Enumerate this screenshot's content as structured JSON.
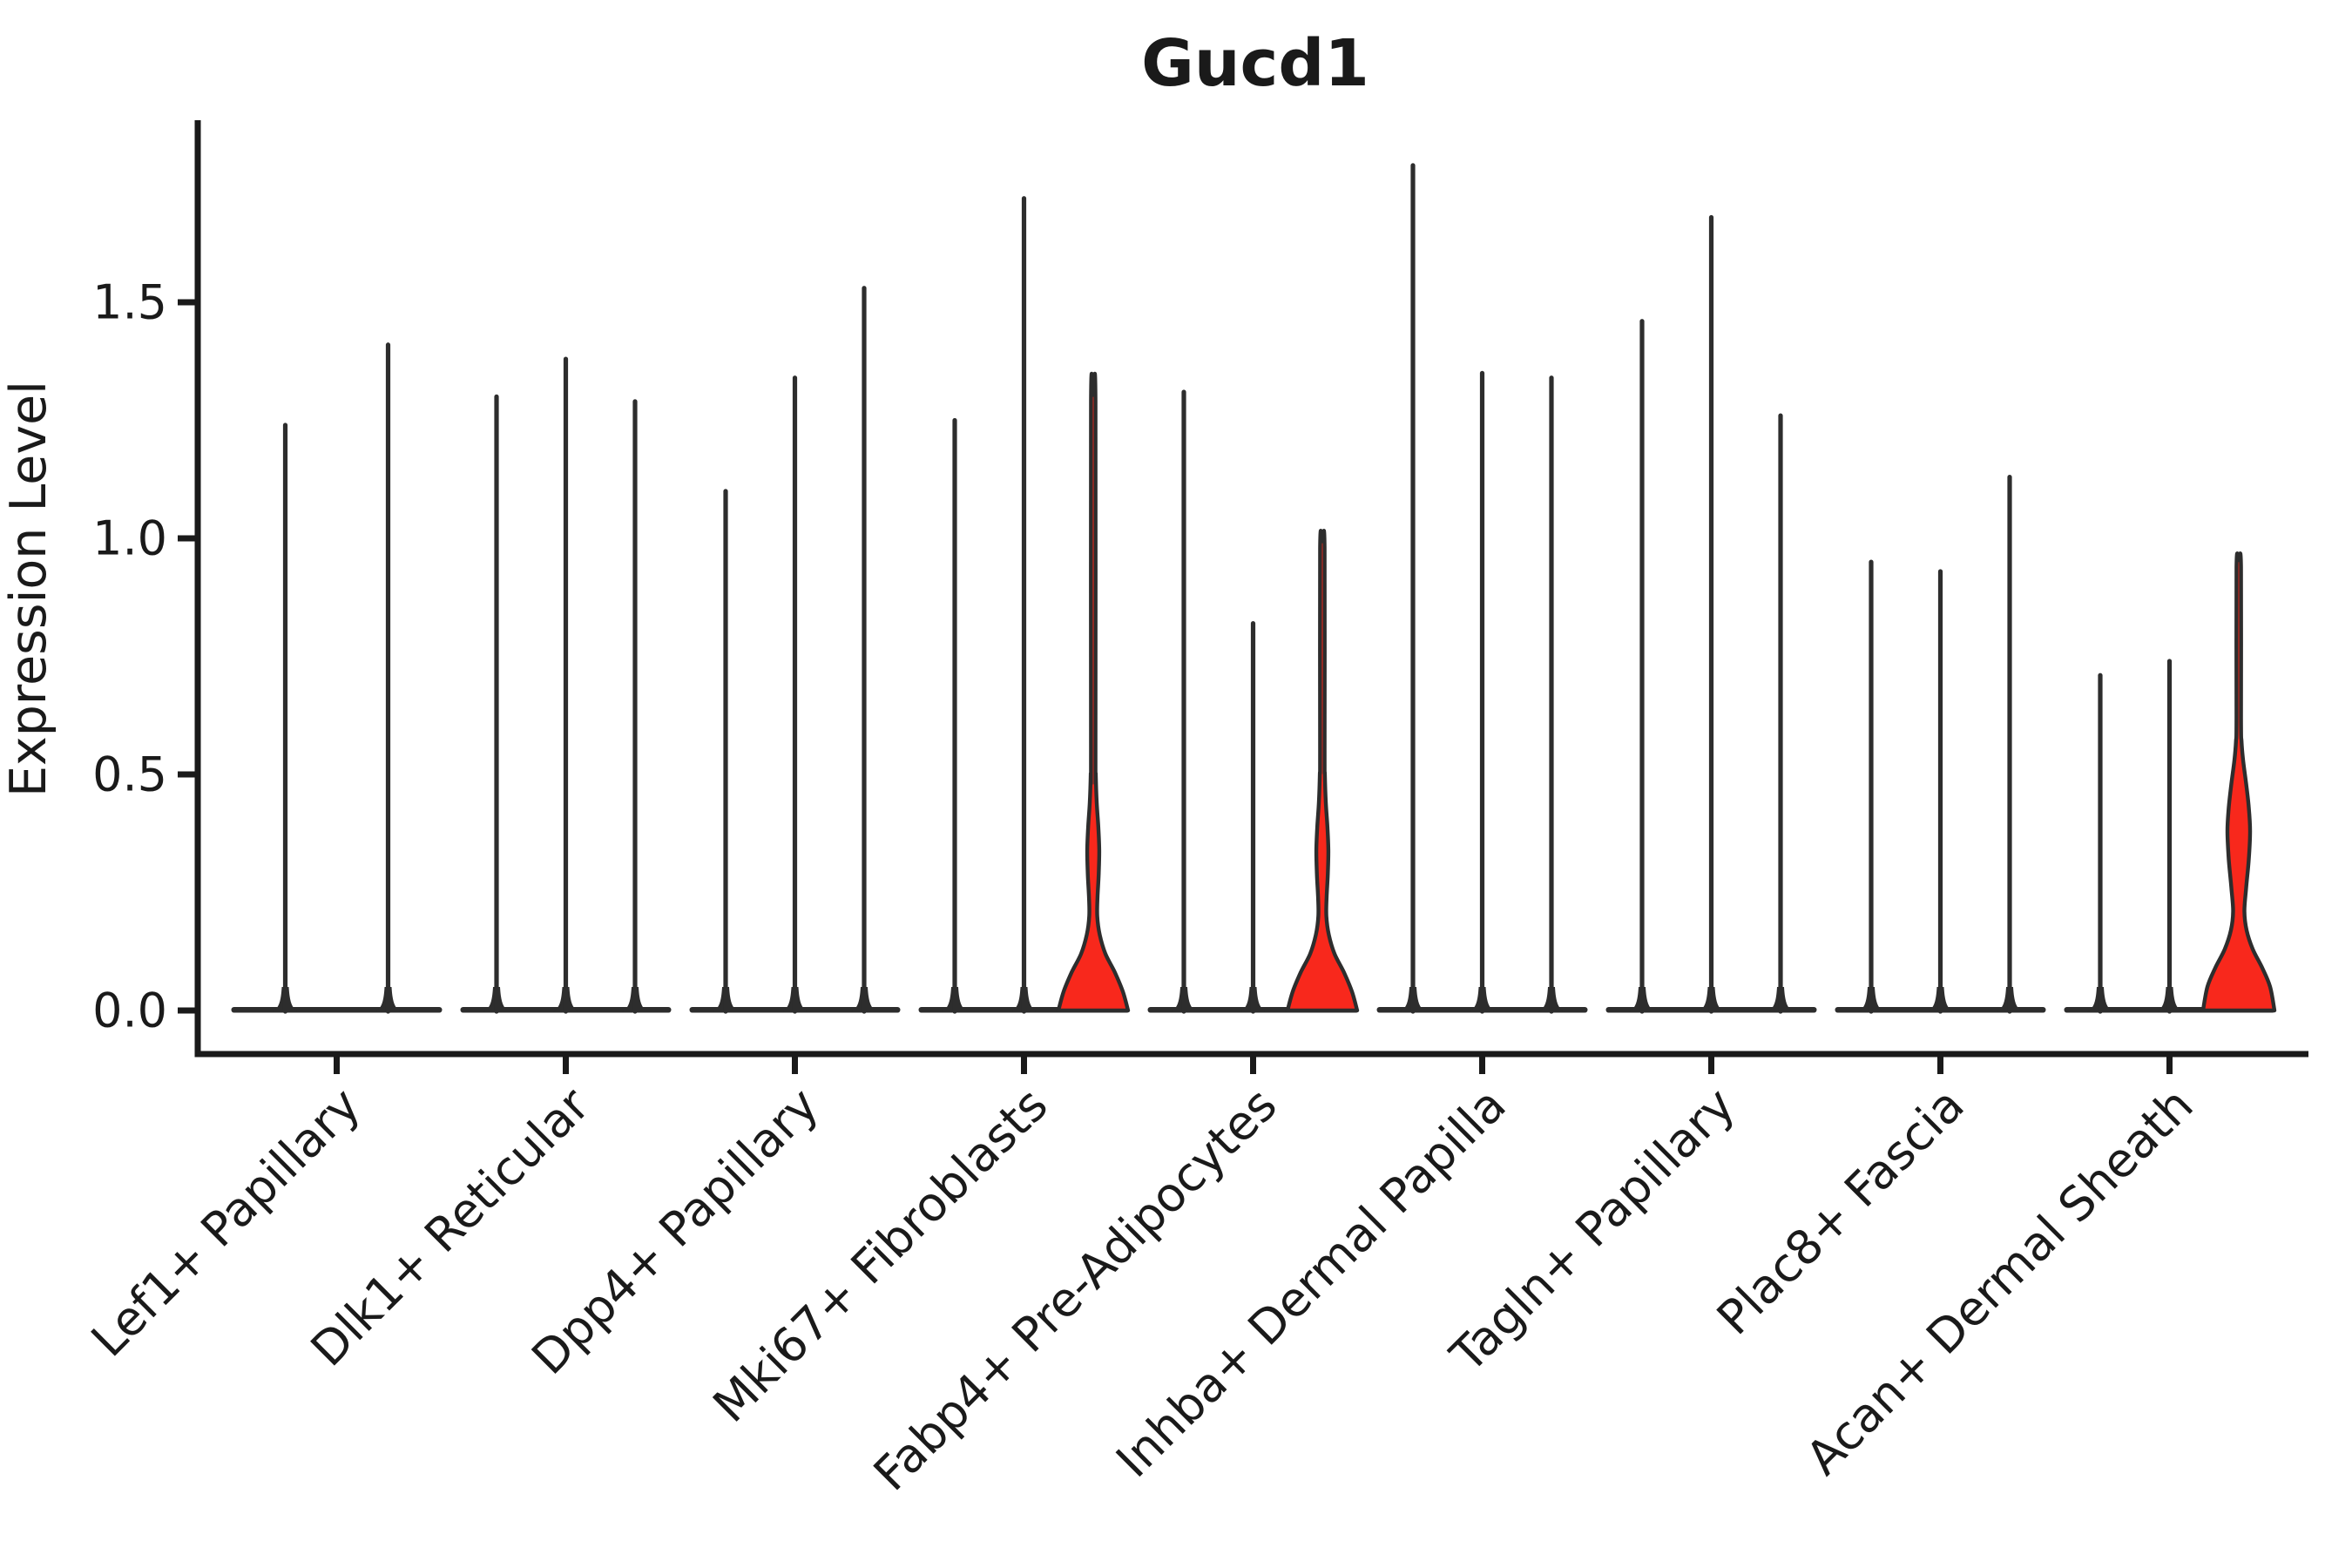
{
  "chart_data": {
    "type": "violin",
    "title": "Gucd1",
    "ylabel": "Expression Level",
    "xlabel": "",
    "yticks": [
      "0.0",
      "0.5",
      "1.0",
      "1.5"
    ],
    "ytick_values": [
      0.0,
      0.5,
      1.0,
      1.5
    ],
    "ylim": [
      -0.09,
      1.88
    ],
    "grid": "off",
    "legend": "none",
    "x_tick_rotation": 45,
    "line_color": "#2d2d2d",
    "highlight_color": "#f8281c",
    "background_color": "#ffffff",
    "categories": [
      "Lef1+ Papillary",
      "Dlk1+ Reticular",
      "Dpp4+ Papillary",
      "Mki67+ Fibroblasts",
      "Fabp4+ Pre-Adipocytes",
      "Inhba+ Dermal Papilla",
      "Tagln+ Papillary",
      "Plac8+ Fascia",
      "Acan+ Dermal Sheath"
    ],
    "groups": [
      {
        "label": "Lef1+ Papillary",
        "violins": [
          {
            "max": 1.24,
            "highlighted": false
          },
          {
            "max": 1.41,
            "highlighted": false
          }
        ]
      },
      {
        "label": "Dlk1+ Reticular",
        "violins": [
          {
            "max": 1.3,
            "highlighted": false
          },
          {
            "max": 1.38,
            "highlighted": false
          },
          {
            "max": 1.29,
            "highlighted": false
          }
        ]
      },
      {
        "label": "Dpp4+ Papillary",
        "violins": [
          {
            "max": 1.1,
            "highlighted": false
          },
          {
            "max": 1.34,
            "highlighted": false
          },
          {
            "max": 1.53,
            "highlighted": false
          }
        ]
      },
      {
        "label": "Mki67+ Fibroblasts",
        "violins": [
          {
            "max": 1.25,
            "highlighted": false
          },
          {
            "max": 1.72,
            "highlighted": false
          },
          {
            "max": 1.3,
            "highlighted": true,
            "profile": "small"
          }
        ]
      },
      {
        "label": "Fabp4+ Pre-Adipocytes",
        "violins": [
          {
            "max": 1.31,
            "highlighted": false
          },
          {
            "max": 0.82,
            "highlighted": false
          },
          {
            "max": 0.99,
            "highlighted": true,
            "profile": "small"
          }
        ]
      },
      {
        "label": "Inhba+ Dermal Papilla",
        "violins": [
          {
            "max": 1.79,
            "highlighted": false
          },
          {
            "max": 1.35,
            "highlighted": false
          },
          {
            "max": 1.34,
            "highlighted": false
          }
        ]
      },
      {
        "label": "Tagln+ Papillary",
        "violins": [
          {
            "max": 1.46,
            "highlighted": false
          },
          {
            "max": 1.68,
            "highlighted": false
          },
          {
            "max": 1.26,
            "highlighted": false
          }
        ]
      },
      {
        "label": "Plac8+ Fascia",
        "violins": [
          {
            "max": 0.95,
            "highlighted": false
          },
          {
            "max": 0.93,
            "highlighted": false
          },
          {
            "max": 1.13,
            "highlighted": false
          }
        ]
      },
      {
        "label": "Acan+ Dermal Sheath",
        "violins": [
          {
            "max": 0.71,
            "highlighted": false
          },
          {
            "max": 0.74,
            "highlighted": false
          },
          {
            "max": 0.95,
            "highlighted": true,
            "profile": "large"
          }
        ]
      }
    ],
    "red_violin_profiles": {
      "small": [
        [
          0,
          40
        ],
        [
          0.04,
          34
        ],
        [
          0.08,
          25
        ],
        [
          0.12,
          14
        ],
        [
          0.16,
          7.5
        ],
        [
          0.2,
          4.6
        ],
        [
          0.24,
          4.9
        ],
        [
          0.29,
          6.3
        ],
        [
          0.34,
          6.9
        ],
        [
          0.39,
          5.8
        ],
        [
          0.44,
          4.0
        ],
        [
          0.5,
          2.9
        ],
        [
          0.55,
          2.6
        ]
      ],
      "large": [
        [
          0,
          41
        ],
        [
          0.05,
          36
        ],
        [
          0.09,
          27
        ],
        [
          0.13,
          16
        ],
        [
          0.17,
          9
        ],
        [
          0.21,
          6.5
        ],
        [
          0.26,
          8.5
        ],
        [
          0.32,
          11.5
        ],
        [
          0.38,
          13
        ],
        [
          0.43,
          11.5
        ],
        [
          0.48,
          8.5
        ],
        [
          0.53,
          5
        ],
        [
          0.57,
          3.2
        ],
        [
          0.62,
          2.6
        ]
      ]
    }
  }
}
